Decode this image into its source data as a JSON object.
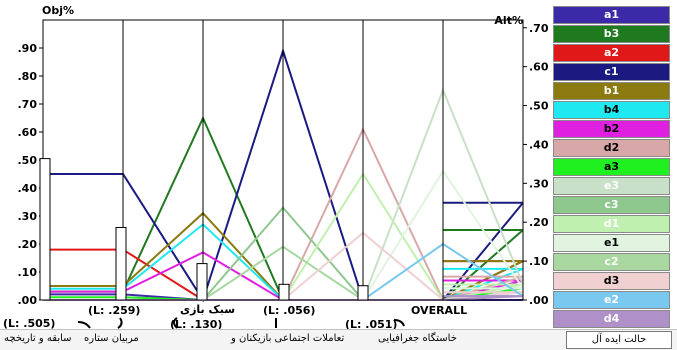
{
  "chart_data": {
    "type": "line",
    "left_axis": {
      "label": "Obj%",
      "ylim": [
        0,
        1.0
      ],
      "ticks": [
        ".00",
        ".10",
        ".20",
        ".30",
        ".40",
        ".50",
        ".60",
        ".70",
        ".80",
        ".90"
      ]
    },
    "right_axis": {
      "label": "Alt%",
      "ylim": [
        0,
        0.72
      ],
      "ticks": [
        ".00",
        ".10",
        ".20",
        ".30",
        ".40",
        ".50",
        ".60",
        ".70"
      ]
    },
    "criteria": [
      {
        "weight_label": "(L: .505)",
        "name": "سابقه و تاریخچه",
        "weight": 0.505
      },
      {
        "weight_label": "(L: .259)",
        "name": "مربیان ستاره",
        "weight": 0.259
      },
      {
        "weight_label": "(L: .130)",
        "name": "سبک بازی",
        "weight": 0.13
      },
      {
        "weight_label": "(L: .056)",
        "name": "تعاملات اجتماعی بازیکنان و",
        "weight": 0.056
      },
      {
        "weight_label": "(L: .051)",
        "name": "خاستگاه جغرافیایی",
        "weight": 0.051
      }
    ],
    "overall_label": "OVERALL",
    "series": [
      {
        "name": "a1",
        "color": "#3a2aa8",
        "values": [
          0.02,
          0.0,
          0.0,
          0.0,
          0.0
        ],
        "overall": 0.0
      },
      {
        "name": "b3",
        "color": "#1f7a1f",
        "values": [
          0.03,
          0.65,
          0.0,
          0.0,
          0.0
        ],
        "overall": 0.18
      },
      {
        "name": "a2",
        "color": "#e01818",
        "values": [
          0.18,
          0.0,
          0.0,
          0.0,
          0.0
        ],
        "overall": 0.1
      },
      {
        "name": "c1",
        "color": "#1a1a80",
        "values": [
          0.45,
          0.0,
          0.89,
          0.0,
          0.0
        ],
        "overall": 0.25
      },
      {
        "name": "b1",
        "color": "#8a7a10",
        "values": [
          0.05,
          0.31,
          0.0,
          0.0,
          0.0
        ],
        "overall": 0.1
      },
      {
        "name": "b4",
        "color": "#20e8f0",
        "values": [
          0.04,
          0.27,
          0.0,
          0.0,
          0.0
        ],
        "overall": 0.08
      },
      {
        "name": "b2",
        "color": "#e020e0",
        "values": [
          0.03,
          0.17,
          0.0,
          0.0,
          0.0
        ],
        "overall": 0.05
      },
      {
        "name": "d2",
        "color": "#d8a8a8",
        "values": [
          0.0,
          0.0,
          0.0,
          0.61,
          0.0
        ],
        "overall": 0.06
      },
      {
        "name": "a3",
        "color": "#20f020",
        "values": [
          0.01,
          0.0,
          0.0,
          0.0,
          0.0
        ],
        "overall": 0.03
      },
      {
        "name": "e3",
        "color": "#c8e0c8",
        "values": [
          0.0,
          0.0,
          0.0,
          0.0,
          0.75
        ],
        "overall": 0.04
      },
      {
        "name": "c3",
        "color": "#8ec88e",
        "values": [
          0.0,
          0.0,
          0.33,
          0.0,
          0.0
        ],
        "overall": 0.04
      },
      {
        "name": "d1",
        "color": "#c0f0b0",
        "values": [
          0.0,
          0.0,
          0.0,
          0.45,
          0.0
        ],
        "overall": 0.04
      },
      {
        "name": "e1",
        "color": "#e0f4e0",
        "values": [
          0.0,
          0.0,
          0.0,
          0.0,
          0.46
        ],
        "overall": 0.03
      },
      {
        "name": "c2",
        "color": "#a8d8a0",
        "values": [
          0.0,
          0.0,
          0.19,
          0.0,
          0.0
        ],
        "overall": 0.02
      },
      {
        "name": "d3",
        "color": "#f0d0d0",
        "values": [
          0.0,
          0.0,
          0.0,
          0.24,
          0.0
        ],
        "overall": 0.02
      },
      {
        "name": "e2",
        "color": "#78c8f0",
        "values": [
          0.0,
          0.0,
          0.0,
          0.0,
          0.2
        ],
        "overall": 0.01
      },
      {
        "name": "d4",
        "color": "#b090c8",
        "values": [
          0.0,
          0.0,
          0.0,
          0.0,
          0.0
        ],
        "overall": 0.01
      }
    ]
  },
  "legend": [
    {
      "name": "a1",
      "bg": "#3a2aa8",
      "fg": "#ffffff"
    },
    {
      "name": "b3",
      "bg": "#1f7a1f",
      "fg": "#ffffff"
    },
    {
      "name": "a2",
      "bg": "#e01818",
      "fg": "#ffffff"
    },
    {
      "name": "c1",
      "bg": "#1a1a80",
      "fg": "#ffffff"
    },
    {
      "name": "b1",
      "bg": "#8a7a10",
      "fg": "#ffffff"
    },
    {
      "name": "b4",
      "bg": "#20e8f0",
      "fg": "#000000"
    },
    {
      "name": "b2",
      "bg": "#e020e0",
      "fg": "#000000"
    },
    {
      "name": "d2",
      "bg": "#d8a8a8",
      "fg": "#000000"
    },
    {
      "name": "a3",
      "bg": "#20f020",
      "fg": "#000000"
    },
    {
      "name": "e3",
      "bg": "#c8e0c8",
      "fg": "#ffffff"
    },
    {
      "name": "c3",
      "bg": "#8ec88e",
      "fg": "#ffffff"
    },
    {
      "name": "d1",
      "bg": "#c0f0b0",
      "fg": "#ffffff"
    },
    {
      "name": "e1",
      "bg": "#e0f4e0",
      "fg": "#000000"
    },
    {
      "name": "c2",
      "bg": "#a8d8a0",
      "fg": "#ffffff"
    },
    {
      "name": "d3",
      "bg": "#f0d0d0",
      "fg": "#000000"
    },
    {
      "name": "e2",
      "bg": "#78c8f0",
      "fg": "#ffffff"
    },
    {
      "name": "d4",
      "bg": "#b090c8",
      "fg": "#ffffff"
    }
  ],
  "footer": {
    "mode_label": "حالت ایده آل"
  }
}
